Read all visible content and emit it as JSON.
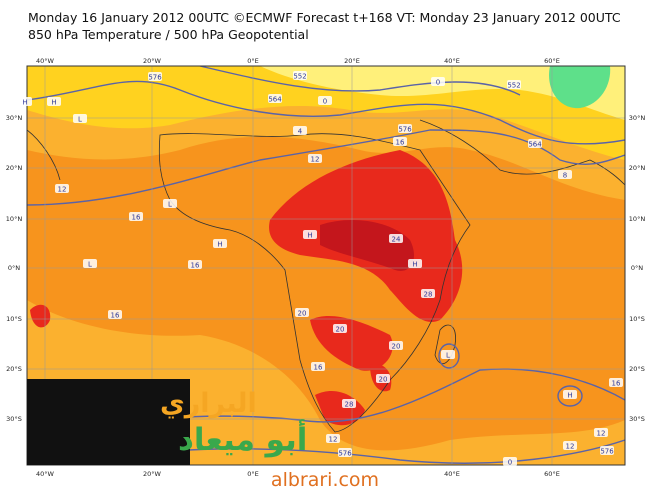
{
  "header": {
    "title": "Monday 16 January 2012 00UTC ©ECMWF Forecast t+168 VT: Monday 23 January 2012 00UTC",
    "subtitle": "850 hPa Temperature / 500 hPa Geopotential"
  },
  "map": {
    "top_lon_labels": [
      "40°W",
      "20°W",
      "0°E",
      "20°E",
      "40°E",
      "60°E"
    ],
    "bottom_lon_labels": [
      "40°W",
      "20°W",
      "0°E",
      "40°E",
      "60°E"
    ],
    "left_lat_labels": [
      "30°N",
      "20°N",
      "10°N",
      "0°N",
      "10°S",
      "20°S",
      "30°S"
    ],
    "right_lat_labels": [
      "30°N",
      "20°N",
      "10°N",
      "0°N",
      "10°S",
      "20°S",
      "30°S"
    ],
    "labels": [
      "576",
      "564",
      "552",
      "0",
      "0",
      "4",
      "576",
      "16",
      "12",
      "12",
      "16",
      "16",
      "24",
      "28",
      "16",
      "20",
      "20",
      "20",
      "16",
      "20",
      "28",
      "12",
      "576",
      "12",
      "12",
      "16",
      "0",
      "576",
      "8",
      "564",
      "552",
      "H",
      "H",
      "L",
      "L",
      "H",
      "H",
      "L",
      "H",
      "L",
      "H"
    ]
  },
  "logo": {
    "line1": "البراري",
    "line2": "أبو ميعاد"
  },
  "watermark": "albrari.com"
}
